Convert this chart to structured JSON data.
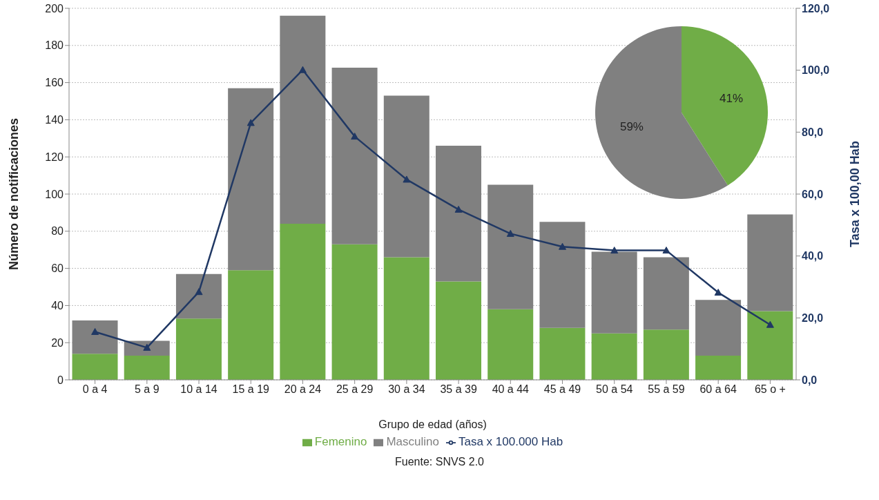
{
  "chart_data": [
    {
      "type": "bar",
      "stacked": true,
      "xlabel": "Grupo de edad (años)",
      "ylabel": "Número de notificaciones",
      "y2label": "Tasa x 100,00 Hab",
      "categories": [
        "0 a 4",
        "5 a 9",
        "10 a 14",
        "15 a 19",
        "20 a 24",
        "25 a 29",
        "30 a 34",
        "35 a 39",
        "40 a 44",
        "45 a 49",
        "50 a 54",
        "55 a 59",
        "60 a 64",
        "65 o +"
      ],
      "series": [
        {
          "name": "Femenino",
          "color": "#70ad47",
          "values": [
            14,
            13,
            33,
            59,
            84,
            73,
            66,
            53,
            38,
            28,
            25,
            27,
            13,
            37
          ]
        },
        {
          "name": "Masculino",
          "color": "#808080",
          "values": [
            18,
            8,
            24,
            98,
            112,
            95,
            87,
            73,
            67,
            57,
            44,
            39,
            30,
            52
          ]
        },
        {
          "name": "Tasa x 100.000 Hab",
          "type": "line",
          "axis": "y2",
          "color": "#203864",
          "marker": "triangle",
          "line_style": "solid",
          "values": [
            15.5,
            10.4,
            28.4,
            83.0,
            100.1,
            78.6,
            64.7,
            55.0,
            47.2,
            43.0,
            41.8,
            41.8,
            28.2,
            17.8
          ]
        }
      ],
      "ylim": [
        0,
        200
      ],
      "yticks": [
        0,
        20,
        40,
        60,
        80,
        100,
        120,
        140,
        160,
        180,
        200
      ],
      "y2lim": [
        0,
        120
      ],
      "y2ticks": [
        {
          "value": 0,
          "label": "0,0"
        },
        {
          "value": 20,
          "label": "20,0"
        },
        {
          "value": 40,
          "label": "40,0"
        },
        {
          "value": 60,
          "label": "60,0"
        },
        {
          "value": 80,
          "label": "80,0"
        },
        {
          "value": 100,
          "label": "100,0"
        },
        {
          "value": 120,
          "label": "120,0"
        }
      ],
      "grid": "y",
      "legend": "bottom",
      "annotations": [
        "Fuente: SNVS 2.0"
      ]
    },
    {
      "type": "pie",
      "categories": [
        null,
        null
      ],
      "values": [
        41,
        59
      ],
      "colors": [
        "#70ad47",
        "#808080"
      ],
      "value_labels": [
        "41%",
        "59%"
      ]
    }
  ]
}
